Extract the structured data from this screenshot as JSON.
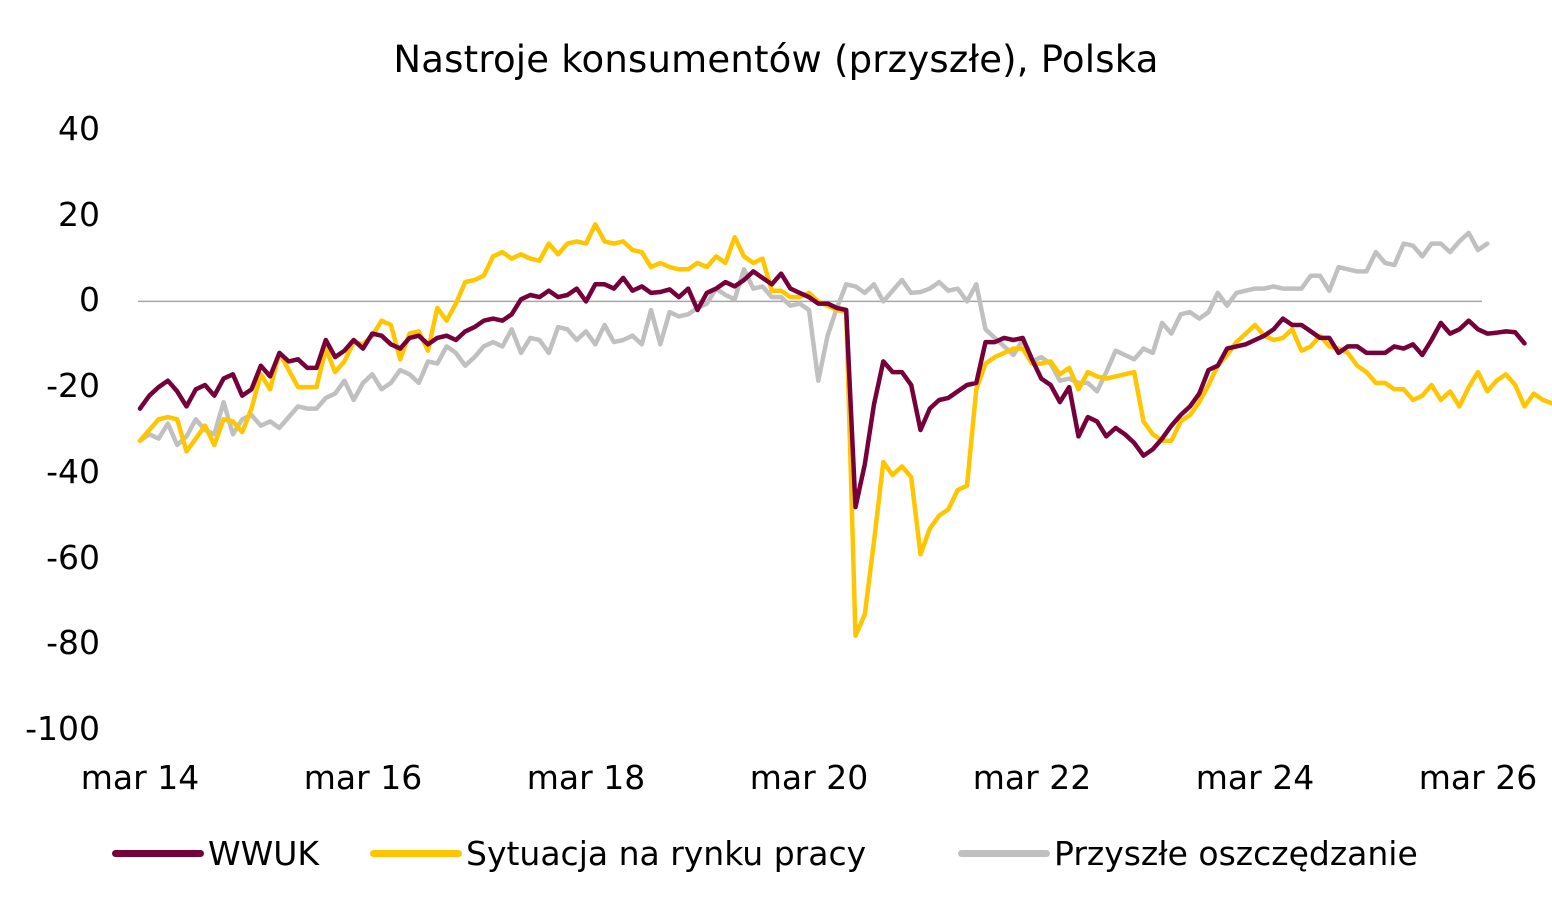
{
  "chart_data": {
    "type": "line",
    "title": "Nastroje konsumentów (przyszłe), Polska",
    "xlabel": "",
    "ylabel": "",
    "ylim": [
      -100,
      40
    ],
    "yticks": [
      40,
      20,
      0,
      -20,
      -40,
      -60,
      -80,
      -100
    ],
    "ytick_labels": [
      "40",
      "20",
      "0",
      "-20",
      "-40",
      "-60",
      "-80",
      "-100"
    ],
    "xtick_labels": [
      "mar 14",
      "mar 16",
      "mar 18",
      "mar 20",
      "mar 22",
      "mar 24",
      "mar 26"
    ],
    "x_start": "2014-03",
    "frequency": "monthly",
    "grid": false,
    "zero_line": true,
    "legend_position": "bottom",
    "series": [
      {
        "name": "WWUK",
        "color": "#76003A",
        "values": [
          -25,
          -22,
          -20,
          -18.5,
          -21,
          -24.5,
          -20.5,
          -19.5,
          -22,
          -18,
          -17,
          -22,
          -20.5,
          -15,
          -17.5,
          -12,
          -14,
          -13.5,
          -15.5,
          -15.5,
          -9,
          -13,
          -11.5,
          -9,
          -11,
          -7.5,
          -8,
          -10,
          -11,
          -8.5,
          -8,
          -10,
          -8.5,
          -8,
          -9,
          -7,
          -6,
          -4.5,
          -4,
          -4.5,
          -3,
          0.5,
          1.5,
          1,
          2.5,
          1,
          1.5,
          3,
          0,
          4,
          4,
          3,
          5.5,
          2.5,
          3.5,
          2,
          2.2,
          2.8,
          1,
          3,
          -2,
          2,
          3,
          4.5,
          3.5,
          5,
          7,
          5.5,
          4,
          6.5,
          3,
          2,
          1,
          -0.5,
          -0.5,
          -1.5,
          -2,
          -48,
          -38,
          -24,
          -14,
          -16.5,
          -16.5,
          -19.5,
          -30,
          -25,
          -23,
          -22.5,
          -21,
          -19.5,
          -19,
          -9.5,
          -9.5,
          -8.5,
          -9,
          -8.5,
          -13.5,
          -18,
          -19.5,
          -23.5,
          -20,
          -31.5,
          -27,
          -28,
          -31.5,
          -29.5,
          -31,
          -33,
          -36,
          -34.5,
          -32,
          -29,
          -26.5,
          -24.5,
          -21.5,
          -16,
          -15,
          -11,
          -10.5,
          -10,
          -9,
          -8,
          -6.5,
          -4,
          -5.5,
          -5.5,
          -7,
          -8.5,
          -8.5,
          -12,
          -10.5,
          -10.5,
          -12,
          -12,
          -12,
          -10.5,
          -11,
          -10,
          -12.5,
          -9,
          -5,
          -7.5,
          -6.5,
          -4.5,
          -6.5,
          -7.5,
          -7.3,
          -7,
          -7.2,
          -9.8
        ],
        "legend_label": "WWUK"
      },
      {
        "name": "Sytuacja na rynku pracy",
        "color": "#FFC600",
        "values": [
          -32.5,
          -30,
          -27.5,
          -27,
          -27.5,
          -35,
          -32,
          -29,
          -33.5,
          -27.5,
          -28,
          -30.5,
          -25,
          -17,
          -20.5,
          -12,
          -16,
          -20,
          -20,
          -20,
          -11,
          -16.5,
          -14,
          -9.5,
          -10,
          -8,
          -4.5,
          -5.5,
          -13.5,
          -7.5,
          -7,
          -11.5,
          -1.5,
          -4.5,
          -0.5,
          4.5,
          5,
          6,
          10.5,
          11.5,
          10,
          11,
          10,
          9.5,
          13.5,
          11,
          13.5,
          14,
          13.5,
          18,
          14,
          13.5,
          14,
          12,
          11.5,
          8,
          9,
          8,
          7.5,
          7.5,
          9,
          8,
          10.5,
          9,
          15,
          10.5,
          9,
          10,
          2.5,
          2.5,
          1,
          1,
          2,
          0,
          -1,
          -2,
          -2.5,
          -78,
          -73,
          -56,
          -37.5,
          -40.5,
          -38.5,
          -41,
          -59,
          -53,
          -50,
          -48.5,
          -44,
          -43,
          -20.5,
          -14.5,
          -13,
          -12,
          -11,
          -11,
          -14.5,
          -14.5,
          -14,
          -17,
          -15.5,
          -20.5,
          -16.5,
          -17.5,
          -18,
          -17.5,
          -17,
          -16.5,
          -28,
          -31,
          -32.5,
          -32.5,
          -28,
          -26.5,
          -23.5,
          -19.5,
          -15,
          -12.5,
          -9.5,
          -7.5,
          -5.5,
          -8,
          -9,
          -8.5,
          -6.5,
          -11.5,
          -10.5,
          -8,
          -10.5,
          -11,
          -12,
          -15,
          -16.5,
          -19,
          -19,
          -20.5,
          -20.5,
          -23,
          -22,
          -19.5,
          -23,
          -21,
          -24.5,
          -20,
          -16.5,
          -21,
          -18.5,
          -17,
          -19.5,
          -24.5,
          -21.5,
          -23,
          -23.8,
          -23.2
        ],
        "legend_label": "Sytuacja na rynku pracy"
      },
      {
        "name": "Przyszłe oszczędzanie",
        "color": "#C0C0C0",
        "values": [
          -32.5,
          -31,
          -32,
          -28.5,
          -33.5,
          -31.5,
          -27.5,
          -30,
          -31,
          -23.5,
          -31,
          -27.5,
          -26.5,
          -29,
          -28,
          -29.5,
          -27,
          -24.5,
          -25,
          -25,
          -22.5,
          -21.5,
          -18.5,
          -23,
          -19,
          -17,
          -20.5,
          -19,
          -16,
          -17,
          -19,
          -14,
          -14.5,
          -10.5,
          -12,
          -15,
          -13,
          -10.5,
          -9.5,
          -10.5,
          -6.5,
          -12,
          -8.5,
          -9,
          -12,
          -6,
          -6.5,
          -9,
          -7,
          -10,
          -5.5,
          -9.5,
          -9,
          -8,
          -10,
          -2,
          -10,
          -2.5,
          -3.5,
          -3,
          -1.5,
          -0.5,
          3,
          1.5,
          0.5,
          7.5,
          3,
          3.5,
          1,
          1,
          -1,
          -0.5,
          -2,
          -18.5,
          -8,
          -1.5,
          4,
          3.5,
          2,
          4,
          0,
          2.5,
          5,
          2,
          2.2,
          3,
          4.5,
          2.5,
          3,
          0,
          4,
          -6.5,
          -8.5,
          -10.5,
          -12.5,
          -9,
          -14,
          -13,
          -14.5,
          -18.5,
          -18,
          -19,
          -19,
          -21,
          -16.5,
          -11.5,
          -12.5,
          -13.5,
          -11,
          -12,
          -5,
          -7.5,
          -3,
          -2.5,
          -4,
          -2.5,
          2,
          -1,
          2,
          2.5,
          3,
          3,
          3.5,
          3,
          3,
          3,
          6,
          6,
          2.5,
          8,
          7.5,
          7,
          7,
          11.5,
          9,
          8.5,
          13.5,
          13,
          10.5,
          13.5,
          13.5,
          11.5,
          14,
          16,
          12,
          13.5
        ],
        "legend_label": "Przyszłe oszczędzanie"
      }
    ]
  },
  "legend": {
    "items": [
      {
        "label": "WWUK",
        "color": "#76003A"
      },
      {
        "label": "Sytuacja na rynku pracy",
        "color": "#FFC600"
      },
      {
        "label": "Przyszłe oszczędzanie",
        "color": "#C0C0C0"
      }
    ]
  }
}
